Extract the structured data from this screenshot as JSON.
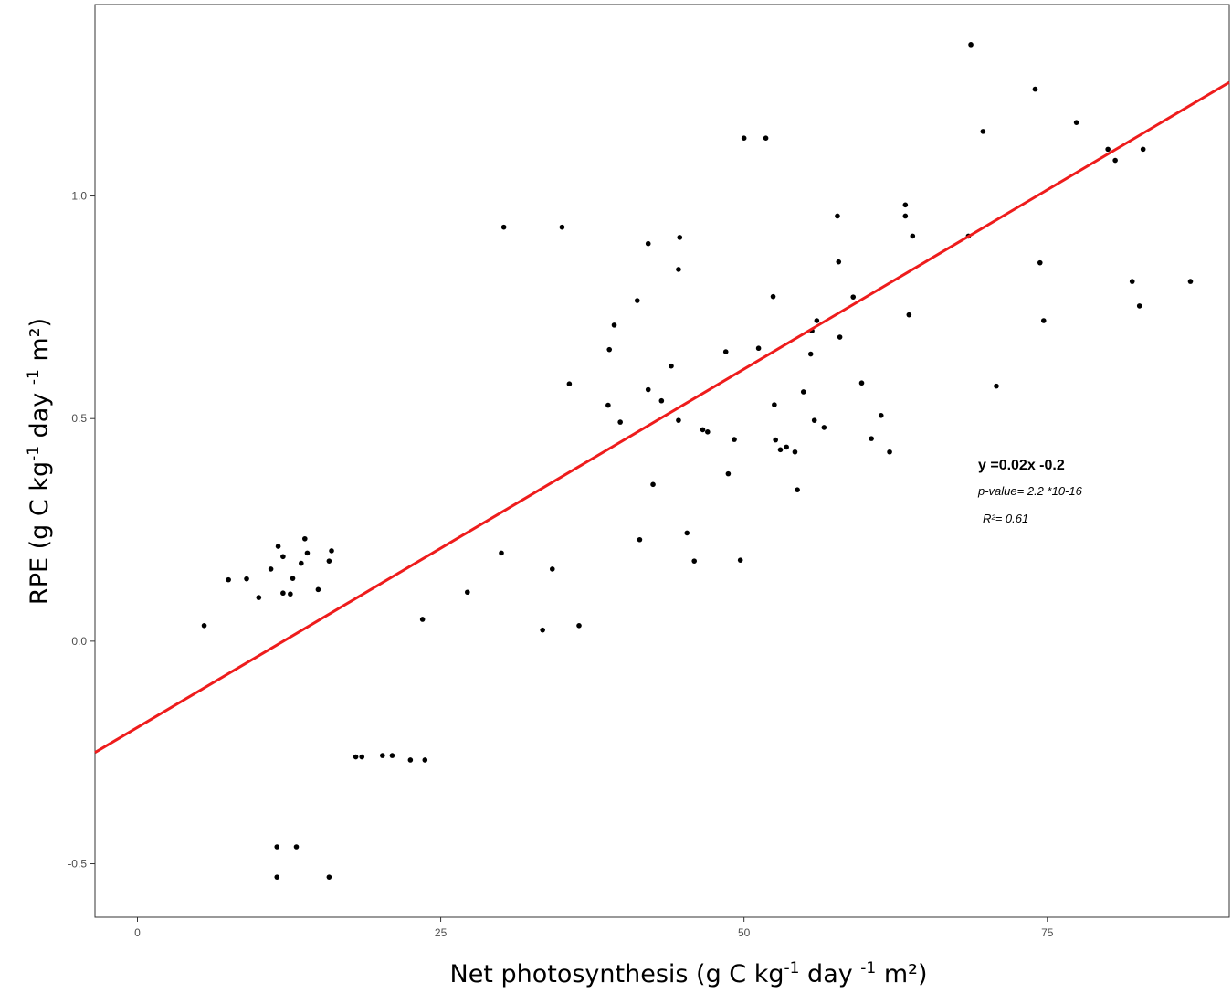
{
  "chart_data": {
    "type": "scatter",
    "xlabel": {
      "pre": "Net photosynthesis (g C kg",
      "sup1": "-1",
      "mid": " day ",
      "sup2": "-1",
      "post": " m²)"
    },
    "ylabel": {
      "pre": "RPE (g C kg",
      "sup1": "-1",
      "mid": " day ",
      "sup2": "-1",
      "post": " m²)"
    },
    "xlim": [
      -3.5,
      90
    ],
    "ylim": [
      -0.62,
      1.43
    ],
    "xticks": [
      0,
      25,
      50,
      75
    ],
    "yticks": [
      -0.5,
      0.0,
      0.5,
      1.0
    ],
    "xtick_labels": [
      "0",
      "25",
      "50",
      "75"
    ],
    "ytick_labels": [
      "-0.5",
      "0.0",
      "0.5",
      "1.0"
    ],
    "grid": false,
    "point_color": "#000000",
    "fit_color": "#ee1c1c",
    "fit_line": {
      "slope": 0.0161,
      "intercept": -0.1937
    },
    "annotations": {
      "equation": "y =0.02x -0.2",
      "p_value": "p-value= 2.2 *10-16",
      "r_squared": "R²= 0.61"
    },
    "points": [
      [
        5.5,
        0.035
      ],
      [
        7.5,
        0.138
      ],
      [
        9,
        0.14
      ],
      [
        10,
        0.098
      ],
      [
        11,
        0.162
      ],
      [
        11.6,
        0.213
      ],
      [
        12,
        0.19
      ],
      [
        12,
        0.108
      ],
      [
        12.6,
        0.106
      ],
      [
        12.8,
        0.141
      ],
      [
        13.5,
        0.175
      ],
      [
        13.8,
        0.23
      ],
      [
        14,
        0.198
      ],
      [
        14.9,
        0.116
      ],
      [
        15.8,
        0.18
      ],
      [
        16,
        0.203
      ],
      [
        11.5,
        -0.462
      ],
      [
        11.5,
        -0.53
      ],
      [
        13.1,
        -0.462
      ],
      [
        15.8,
        -0.53
      ],
      [
        18,
        -0.26
      ],
      [
        18.5,
        -0.26
      ],
      [
        20.2,
        -0.257
      ],
      [
        21,
        -0.257
      ],
      [
        22.5,
        -0.267
      ],
      [
        23.7,
        -0.267
      ],
      [
        23.5,
        0.049
      ],
      [
        27.2,
        0.11
      ],
      [
        30.2,
        0.93
      ],
      [
        30,
        0.198
      ],
      [
        33.4,
        0.025
      ],
      [
        34.2,
        0.162
      ],
      [
        35,
        0.93
      ],
      [
        35.6,
        0.578
      ],
      [
        36.4,
        0.035
      ],
      [
        38.8,
        0.53
      ],
      [
        38.9,
        0.655
      ],
      [
        39.3,
        0.71
      ],
      [
        39.8,
        0.492
      ],
      [
        41.2,
        0.765
      ],
      [
        41.4,
        0.228
      ],
      [
        42.1,
        0.565
      ],
      [
        42.1,
        0.893
      ],
      [
        42.5,
        0.352
      ],
      [
        43.2,
        0.54
      ],
      [
        44,
        0.618
      ],
      [
        44.6,
        0.835
      ],
      [
        44.7,
        0.907
      ],
      [
        44.6,
        0.496
      ],
      [
        45.3,
        0.243
      ],
      [
        45.9,
        0.18
      ],
      [
        46.6,
        0.475
      ],
      [
        47,
        0.47
      ],
      [
        48.5,
        0.65
      ],
      [
        48.7,
        0.376
      ],
      [
        49.2,
        0.453
      ],
      [
        49.7,
        0.182
      ],
      [
        50,
        1.13
      ],
      [
        51.2,
        0.658
      ],
      [
        51.8,
        1.13
      ],
      [
        52.4,
        0.774
      ],
      [
        52.5,
        0.531
      ],
      [
        52.6,
        0.452
      ],
      [
        53,
        0.43
      ],
      [
        53.5,
        0.436
      ],
      [
        54.2,
        0.425
      ],
      [
        54.4,
        0.34
      ],
      [
        54.9,
        0.56
      ],
      [
        55.5,
        0.645
      ],
      [
        55.6,
        0.697
      ],
      [
        55.8,
        0.496
      ],
      [
        56,
        0.72
      ],
      [
        56.6,
        0.48
      ],
      [
        57.7,
        0.955
      ],
      [
        57.8,
        0.852
      ],
      [
        57.9,
        0.683
      ],
      [
        59,
        0.773
      ],
      [
        59.7,
        0.58
      ],
      [
        60.5,
        0.455
      ],
      [
        61.3,
        0.507
      ],
      [
        62,
        0.425
      ],
      [
        63.3,
        0.98
      ],
      [
        63.3,
        0.955
      ],
      [
        63.6,
        0.733
      ],
      [
        63.9,
        0.91
      ],
      [
        68.5,
        0.91
      ],
      [
        68.7,
        1.34
      ],
      [
        69.7,
        1.145
      ],
      [
        70.8,
        0.573
      ],
      [
        74,
        1.24
      ],
      [
        74.4,
        0.85
      ],
      [
        74.7,
        0.72
      ],
      [
        77.4,
        1.165
      ],
      [
        80,
        1.105
      ],
      [
        80.6,
        1.08
      ],
      [
        82,
        0.808
      ],
      [
        82.6,
        0.753
      ],
      [
        82.9,
        1.105
      ],
      [
        86.8,
        0.808
      ]
    ]
  }
}
